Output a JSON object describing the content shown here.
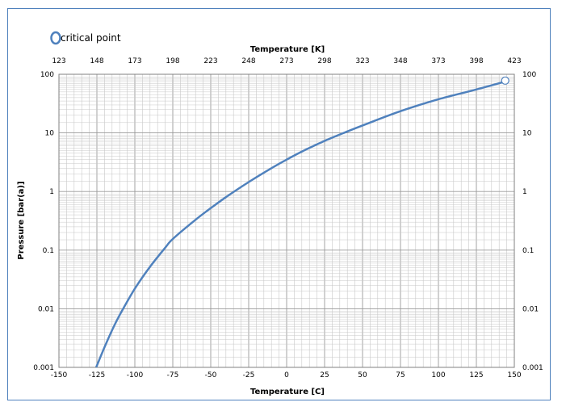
{
  "chart_data": {
    "type": "line",
    "title": "",
    "xlabel": "Temperature [C]",
    "x2label": "Temperature [K]",
    "ylabel": "Pressure [bar(a)]",
    "yscale": "log",
    "xlim": [
      -150,
      150
    ],
    "x2lim": [
      123,
      423
    ],
    "ylim": [
      0.001,
      100
    ],
    "grid": true,
    "legend": {
      "placement": "top-left",
      "entries": [
        "critical point"
      ]
    },
    "x_ticks": [
      "-150",
      "-125",
      "-100",
      "-75",
      "-50",
      "-25",
      "0",
      "25",
      "50",
      "75",
      "100",
      "125",
      "150"
    ],
    "x2_ticks": [
      "123",
      "148",
      "173",
      "198",
      "223",
      "248",
      "273",
      "298",
      "323",
      "348",
      "373",
      "398",
      "423"
    ],
    "y_ticks": [
      "0.001",
      "0.01",
      "0.1",
      "1",
      "10",
      "100"
    ],
    "series": [
      {
        "color": "#4f81bd",
        "x": [
          -125.5,
          -120,
          -115,
          -110,
          -100,
          -90,
          -80,
          -75,
          -60,
          -50,
          -40,
          -25,
          -10,
          0,
          10,
          25,
          40,
          50,
          75,
          100,
          125,
          144
        ],
        "y": [
          0.001,
          0.0022,
          0.0043,
          0.0078,
          0.022,
          0.052,
          0.11,
          0.155,
          0.33,
          0.52,
          0.8,
          1.45,
          2.5,
          3.5,
          4.8,
          7.3,
          10.6,
          13.4,
          23.5,
          37.5,
          55,
          75
        ]
      }
    ],
    "critical_point": {
      "label": "critical point",
      "x": 144,
      "y": 78
    },
    "colors": {
      "series": "#4f81bd",
      "frame": "#4f81bd",
      "grid": "#c8c8c8",
      "major_grid": "#999999"
    }
  }
}
